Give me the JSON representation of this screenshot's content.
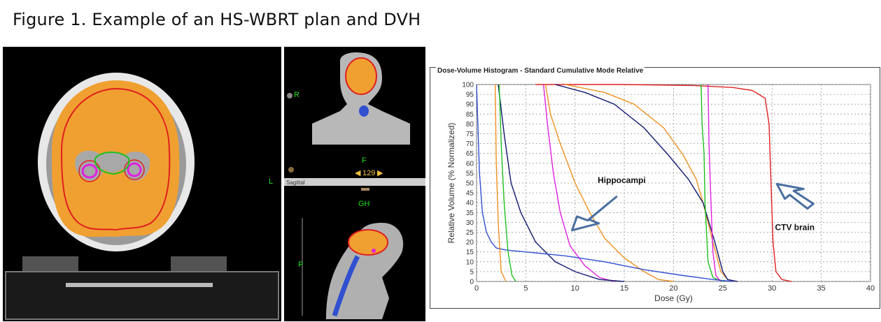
{
  "figure_title": "Figure 1. Example of an HS-WBRT plan and DVH",
  "ct": {
    "axial": {
      "label_l": "L"
    },
    "coronal": {
      "label_r": "R",
      "label_f": "F",
      "slice": "129",
      "view_name": "Sagittal"
    },
    "sagittal": {
      "label_gh": "GH",
      "label_p": "P"
    }
  },
  "colors": {
    "ptv": "#f0a030",
    "ctv_red": "#e02020",
    "hippo_pink": "#e020e0",
    "hippo_green": "#20c020",
    "blue": "#3050d0",
    "navy": "#101870",
    "orange": "#f09020",
    "annotation_arrow": "#4a6fa0"
  },
  "chart_data": {
    "type": "line",
    "title": "Dose-Volume Histogram - Standard Cumulative Mode Relative",
    "xlabel": "Dose (Gy)",
    "ylabel": "Relative Volume (% Normalized)",
    "xlim": [
      0,
      40
    ],
    "ylim": [
      0,
      100
    ],
    "xticks": [
      0,
      5,
      10,
      15,
      20,
      25,
      30,
      35,
      40
    ],
    "yticks": [
      0,
      5,
      10,
      15,
      20,
      25,
      30,
      35,
      40,
      45,
      50,
      55,
      60,
      65,
      70,
      75,
      80,
      85,
      90,
      95,
      100
    ],
    "grid": true,
    "annotations": [
      {
        "text": "Hippocampi"
      },
      {
        "text": "CTV brain"
      }
    ],
    "series": [
      {
        "color": "#e02020",
        "x": [
          6,
          15,
          22,
          26,
          28,
          29.3,
          29.7,
          29.9,
          30.1,
          30.4,
          31,
          32
        ],
        "y": [
          100,
          100,
          99.5,
          98.5,
          97,
          93,
          80,
          50,
          20,
          5,
          1,
          0
        ]
      },
      {
        "color": "#f09020",
        "x": [
          9,
          13,
          16,
          19,
          21,
          22.3,
          23,
          24,
          24.8,
          25.5,
          26
        ],
        "y": [
          100,
          96,
          90,
          78,
          64,
          52,
          40,
          20,
          5,
          1,
          0
        ]
      },
      {
        "color": "#101870",
        "x": [
          8,
          11,
          14,
          17,
          19.5,
          21.5,
          23,
          24.2,
          25,
          25.5,
          26.5
        ],
        "y": [
          100,
          96,
          90,
          78,
          64,
          52,
          40,
          20,
          5,
          1,
          0
        ]
      },
      {
        "color": "#20c020",
        "x": [
          22.8,
          22.9,
          23.1,
          23.2,
          23.5,
          24,
          25
        ],
        "y": [
          100,
          80,
          65,
          40,
          10,
          2,
          0
        ]
      },
      {
        "color": "#e020e0",
        "x": [
          23.5,
          23.6,
          23.8,
          24,
          24.3,
          24.8
        ],
        "y": [
          100,
          70,
          40,
          15,
          3,
          0
        ]
      },
      {
        "color": "#f09020",
        "x": [
          7,
          7.5,
          8.5,
          10,
          11.5,
          13,
          15,
          17,
          18.5,
          20
        ],
        "y": [
          100,
          85,
          70,
          50,
          35,
          22,
          12,
          5,
          1,
          0
        ]
      },
      {
        "color": "#e020e0",
        "x": [
          6.8,
          7.2,
          7.8,
          8.5,
          9.5,
          11,
          12.5,
          14
        ],
        "y": [
          100,
          80,
          55,
          35,
          18,
          8,
          2,
          0
        ]
      },
      {
        "color": "#101870",
        "x": [
          2.2,
          2.8,
          3.5,
          4.5,
          6,
          8,
          10,
          12.5,
          15
        ],
        "y": [
          100,
          75,
          50,
          35,
          20,
          10,
          5,
          1,
          0
        ]
      },
      {
        "color": "#3050d0",
        "x": [
          0,
          0.3,
          0.6,
          1,
          1.5,
          2,
          3,
          5,
          9,
          13,
          17,
          21,
          24,
          26
        ],
        "y": [
          100,
          55,
          35,
          25,
          20,
          17,
          16,
          15,
          13,
          10,
          6,
          3,
          1,
          0
        ]
      },
      {
        "color": "#20c020",
        "x": [
          2.3,
          2.5,
          2.8,
          3.2,
          3.6,
          4
        ],
        "y": [
          100,
          70,
          40,
          15,
          3,
          0
        ]
      },
      {
        "color": "#f09020",
        "x": [
          1.9,
          2,
          2.2,
          2.5,
          3
        ],
        "y": [
          100,
          60,
          30,
          5,
          0
        ]
      }
    ]
  }
}
